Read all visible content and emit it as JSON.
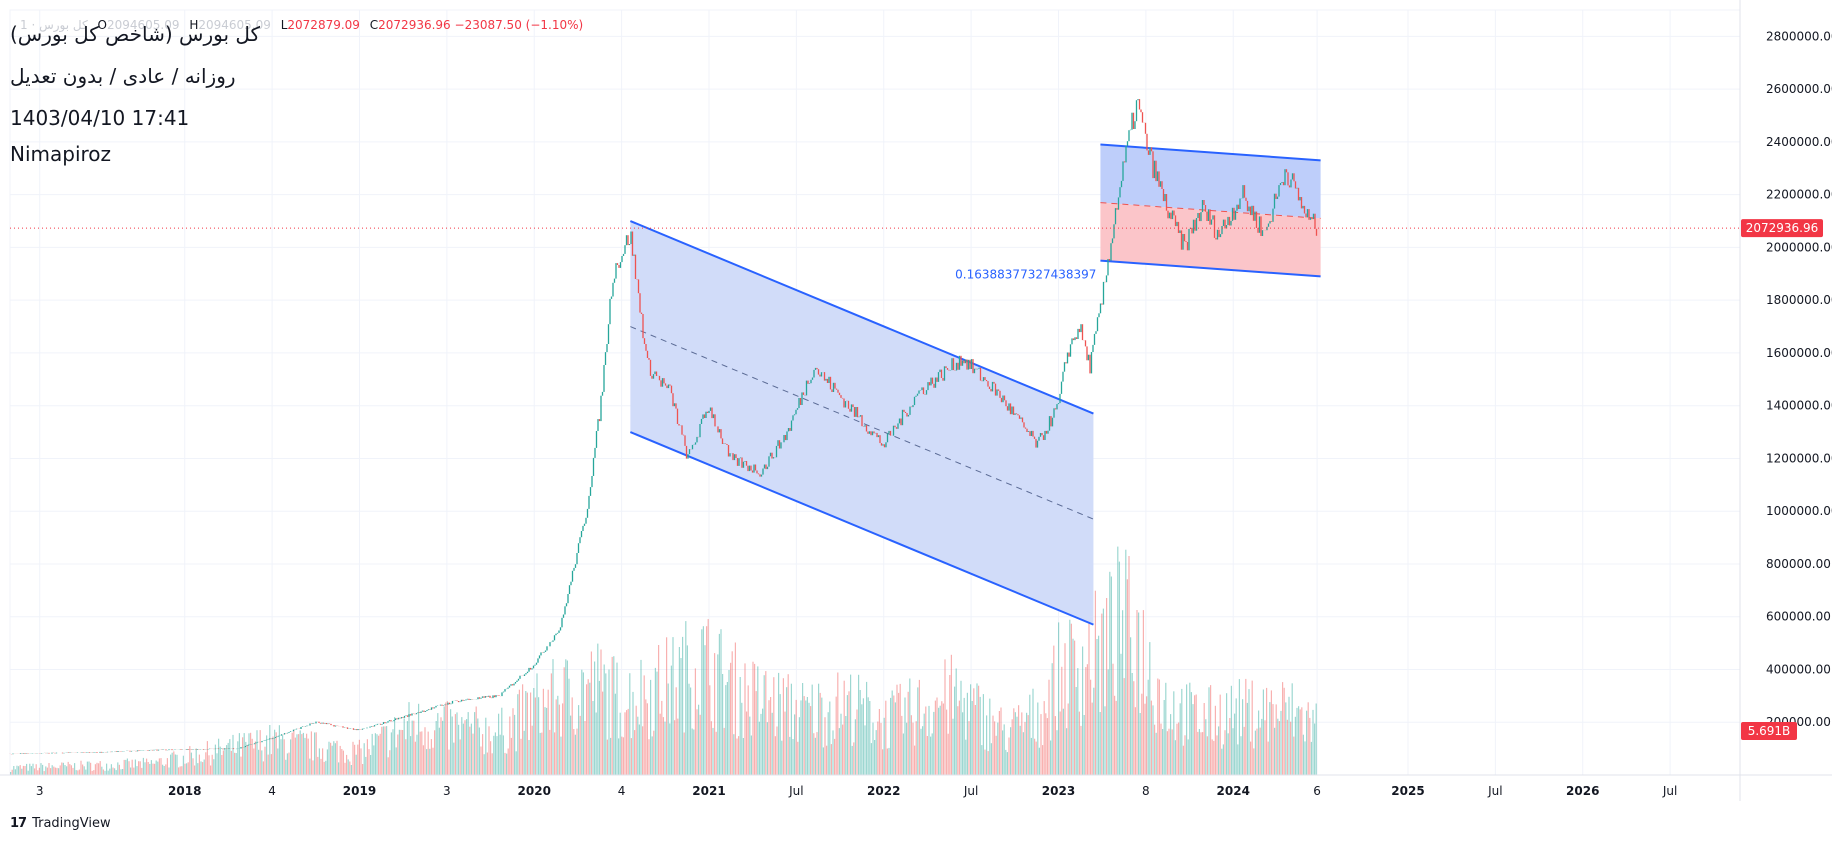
{
  "legend": {
    "title": "کل بورس (شاخص کل بورس)",
    "subtitle": "روزانه / عادی / بدون تعدیل",
    "datetime": "1403/04/10 17:41",
    "author": "Nimapiroz"
  },
  "ohlc": {
    "symbol_faded": "کل بورس · 1",
    "open_label": "O",
    "open_value": "2094605.09",
    "high_label": "H",
    "high_value": "2094605.09",
    "low_label": "L",
    "low_value": "2072879.09",
    "close_label": "C",
    "close_value": "2072936.96",
    "change": "−23087.50 (−1.10%)"
  },
  "brand": {
    "logo": "17",
    "name": "TradingView"
  },
  "colors": {
    "up": "#26a69a",
    "down": "#ef5350",
    "channel_line": "#2962ff",
    "channel_fill": "#cfdaf9",
    "box_top_fill": "#bbcbfa",
    "box_bottom_fill": "#fbc2c6",
    "price_tag": "#f23645",
    "grid": "#f0f3fa",
    "axis_text": "#131722"
  },
  "chart_data": {
    "type": "line",
    "y_axis": {
      "position": "right",
      "range": [
        0,
        2900000
      ],
      "ticks": [
        200000,
        400000,
        600000,
        800000,
        1000000,
        1200000,
        1400000,
        1600000,
        1800000,
        2000000,
        2200000,
        2400000,
        2600000,
        2800000
      ],
      "tick_labels": [
        "200000.00",
        "400000.00",
        "600000.00",
        "800000.00",
        "1000000.00",
        "1200000.00",
        "1400000.00",
        "1600000.00",
        "1800000.00",
        "2000000.00",
        "2200000.00",
        "2400000.00",
        "2600000.00",
        "2800000.00"
      ]
    },
    "x_axis": {
      "range": [
        2017.0,
        2026.9
      ],
      "ticks": [
        {
          "t": 2017.17,
          "label": "3"
        },
        {
          "t": 2018.0,
          "label": "2018"
        },
        {
          "t": 2018.5,
          "label": "4"
        },
        {
          "t": 2019.0,
          "label": "2019"
        },
        {
          "t": 2019.5,
          "label": "3"
        },
        {
          "t": 2020.0,
          "label": "2020"
        },
        {
          "t": 2020.5,
          "label": "4"
        },
        {
          "t": 2021.0,
          "label": "2021"
        },
        {
          "t": 2021.5,
          "label": "Jul"
        },
        {
          "t": 2022.0,
          "label": "2022"
        },
        {
          "t": 2022.5,
          "label": "Jul"
        },
        {
          "t": 2023.0,
          "label": "2023"
        },
        {
          "t": 2023.5,
          "label": "8"
        },
        {
          "t": 2024.0,
          "label": "2024"
        },
        {
          "t": 2024.48,
          "label": "6"
        },
        {
          "t": 2025.0,
          "label": "2025"
        },
        {
          "t": 2025.5,
          "label": "Jul"
        },
        {
          "t": 2026.0,
          "label": "2026"
        },
        {
          "t": 2026.5,
          "label": "Jul"
        }
      ]
    },
    "price_series": {
      "name": "کل بورس",
      "points": [
        [
          2017.0,
          80000
        ],
        [
          2017.5,
          86000
        ],
        [
          2017.85,
          95000
        ],
        [
          2018.3,
          100000
        ],
        [
          2018.5,
          140000
        ],
        [
          2018.75,
          200000
        ],
        [
          2019.0,
          170000
        ],
        [
          2019.3,
          230000
        ],
        [
          2019.55,
          280000
        ],
        [
          2019.8,
          300000
        ],
        [
          2020.0,
          420000
        ],
        [
          2020.15,
          560000
        ],
        [
          2020.3,
          1000000
        ],
        [
          2020.38,
          1400000
        ],
        [
          2020.45,
          1900000
        ],
        [
          2020.55,
          2050000
        ],
        [
          2020.65,
          1550000
        ],
        [
          2020.78,
          1450000
        ],
        [
          2020.88,
          1200000
        ],
        [
          2021.0,
          1400000
        ],
        [
          2021.12,
          1200000
        ],
        [
          2021.3,
          1150000
        ],
        [
          2021.45,
          1300000
        ],
        [
          2021.6,
          1550000
        ],
        [
          2021.8,
          1400000
        ],
        [
          2022.0,
          1250000
        ],
        [
          2022.2,
          1450000
        ],
        [
          2022.45,
          1580000
        ],
        [
          2022.65,
          1450000
        ],
        [
          2022.88,
          1250000
        ],
        [
          2023.0,
          1400000
        ],
        [
          2023.05,
          1600000
        ],
        [
          2023.12,
          1700000
        ],
        [
          2023.18,
          1550000
        ],
        [
          2023.25,
          1800000
        ],
        [
          2023.33,
          2150000
        ],
        [
          2023.4,
          2400000
        ],
        [
          2023.45,
          2550000
        ],
        [
          2023.52,
          2350000
        ],
        [
          2023.62,
          2150000
        ],
        [
          2023.72,
          2000000
        ],
        [
          2023.82,
          2150000
        ],
        [
          2023.92,
          2050000
        ],
        [
          2024.05,
          2200000
        ],
        [
          2024.18,
          2050000
        ],
        [
          2024.3,
          2300000
        ],
        [
          2024.42,
          2120000
        ],
        [
          2024.48,
          2072936.96
        ]
      ]
    },
    "volume": {
      "label": "5.691B",
      "axis_max": 5900000000,
      "profile": [
        [
          2017.0,
          0.25
        ],
        [
          2017.8,
          0.4
        ],
        [
          2018.5,
          1.2
        ],
        [
          2019.0,
          0.8
        ],
        [
          2019.3,
          1.8
        ],
        [
          2019.8,
          1.5
        ],
        [
          2020.0,
          2.4
        ],
        [
          2020.35,
          3.2
        ],
        [
          2020.5,
          2.6
        ],
        [
          2020.8,
          3.3
        ],
        [
          2020.95,
          4.0
        ],
        [
          2021.2,
          2.8
        ],
        [
          2021.55,
          2.2
        ],
        [
          2021.8,
          2.5
        ],
        [
          2022.0,
          1.9
        ],
        [
          2022.4,
          2.8
        ],
        [
          2022.7,
          1.5
        ],
        [
          2022.9,
          2.2
        ],
        [
          2023.0,
          3.5
        ],
        [
          2023.25,
          4.4
        ],
        [
          2023.35,
          5.4
        ],
        [
          2023.45,
          4.8
        ],
        [
          2023.6,
          2.6
        ],
        [
          2023.8,
          2.0
        ],
        [
          2024.0,
          2.2
        ],
        [
          2024.3,
          2.3
        ],
        [
          2024.48,
          1.8
        ]
      ]
    },
    "descending_channel": {
      "upper": [
        [
          2020.55,
          2100000
        ],
        [
          2023.2,
          1370000
        ]
      ],
      "lower": [
        [
          2020.55,
          1300000
        ],
        [
          2023.2,
          570000
        ]
      ],
      "median": [
        [
          2020.55,
          1700000
        ],
        [
          2023.2,
          970000
        ]
      ]
    },
    "range_box": {
      "label": "0.16388377327438397",
      "upper": [
        [
          2023.24,
          2390000
        ],
        [
          2024.5,
          2330000
        ]
      ],
      "middle": [
        [
          2023.24,
          2170000
        ],
        [
          2024.5,
          2110000
        ]
      ],
      "lower": [
        [
          2023.24,
          1950000
        ],
        [
          2024.5,
          1890000
        ]
      ]
    },
    "last_price": {
      "value": 2072936.96,
      "label": "2072936.96"
    }
  }
}
